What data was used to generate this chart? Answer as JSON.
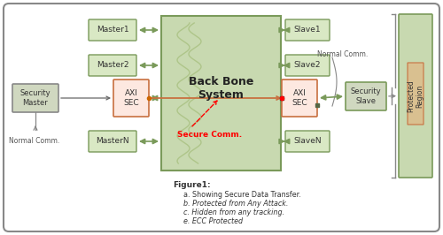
{
  "bg_color": "#ffffff",
  "border_color": "#888888",
  "backbone_color": "#c8d9b0",
  "backbone_border": "#7a9a5a",
  "master_box_color": "#d9e8c4",
  "master_box_border": "#7a9a5a",
  "slave_box_color": "#d9e8c4",
  "slave_box_border": "#7a9a5a",
  "axi_sec_left_color": "#fde8e0",
  "axi_sec_left_border": "#c87040",
  "axi_sec_right_color": "#fde8e0",
  "axi_sec_right_border": "#c87040",
  "security_master_color": "#d0d8c0",
  "security_master_border": "#888888",
  "security_slave_color": "#d0d8c0",
  "security_slave_border": "#7a9a5a",
  "protected_outer_color": "#c8d9b0",
  "protected_outer_border": "#7a9a5a",
  "protected_inner_color": "#d9c090",
  "protected_inner_border": "#c87040",
  "arrow_color": "#7a9a5a",
  "secure_line_color": "#c87040",
  "secure_comm_color": "#cc0000",
  "normal_comm_color": "#666666",
  "backbone_title": "Back Bone\nSystem",
  "figure_text": "Figure1:",
  "notes": [
    "a. Showing Secure Data Transfer.",
    "b. Protected from Any Attack.",
    "c. Hidden from any tracking.",
    "e. ECC Protected"
  ],
  "masters": [
    "Master1",
    "Master2",
    "MasterN"
  ],
  "slaves": [
    "Slave1",
    "Slave2",
    "SlaveN"
  ]
}
